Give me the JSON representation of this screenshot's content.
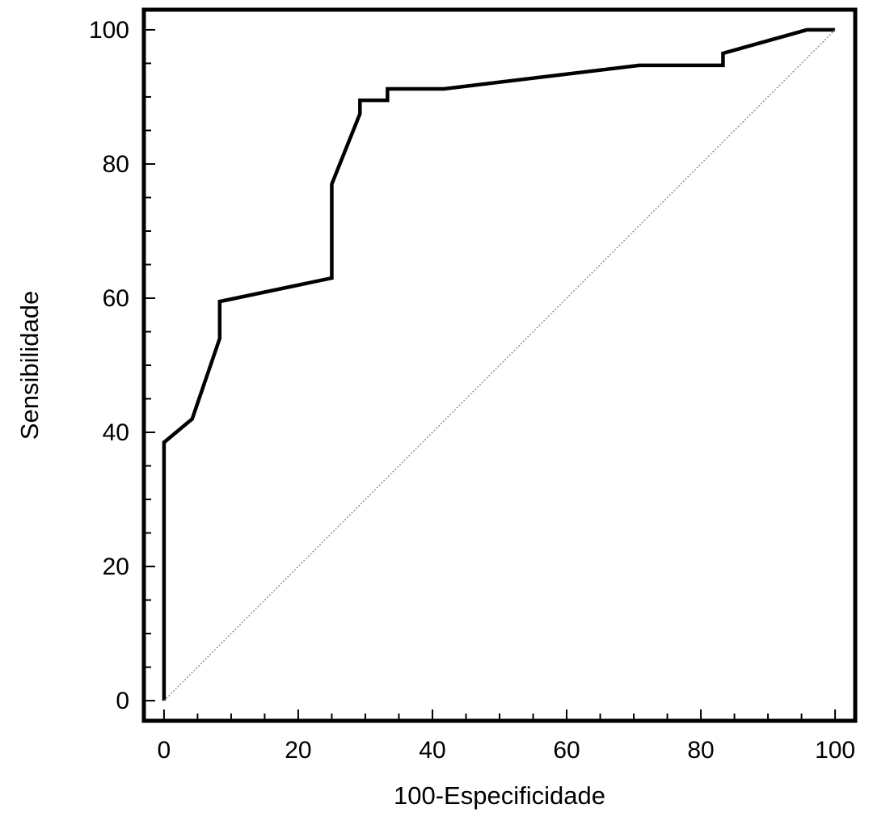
{
  "chart_data": {
    "type": "line",
    "title": "",
    "xlabel": "100-Especificidade",
    "ylabel": "Sensibilidade",
    "xlim": [
      -3,
      103
    ],
    "ylim": [
      -3,
      103
    ],
    "x_ticks": [
      0,
      20,
      40,
      60,
      80,
      100
    ],
    "y_ticks": [
      0,
      20,
      40,
      60,
      80,
      100
    ],
    "x_minor_step": 5,
    "y_minor_step": 5,
    "grid": false,
    "legend": "none",
    "series": [
      {
        "style": "solid-thick",
        "color": "#000000",
        "x": [
          0,
          0,
          4.2,
          8.3,
          8.3,
          25,
          25,
          29.2,
          29.2,
          33.3,
          33.3,
          41.7,
          70.8,
          83.3,
          83.3,
          95.8,
          100
        ],
        "y": [
          0,
          38.5,
          42,
          54,
          59.5,
          63,
          77,
          87.5,
          89.5,
          89.5,
          91.2,
          91.2,
          94.7,
          94.7,
          96.5,
          100,
          100
        ]
      },
      {
        "style": "dotted-thin",
        "color": "#888888",
        "x": [
          0,
          100
        ],
        "y": [
          0,
          100
        ]
      }
    ]
  }
}
